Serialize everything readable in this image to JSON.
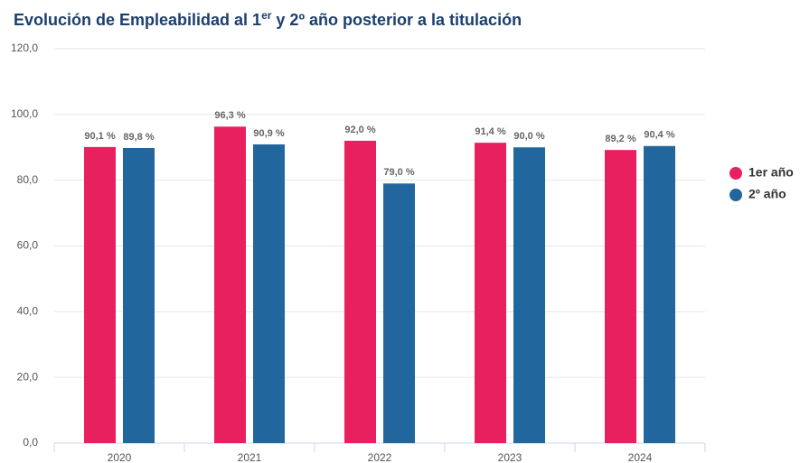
{
  "chart_data": {
    "type": "bar",
    "title": [
      "Evolución de Empleabilidad al 1",
      "er",
      " y 2º año posterior a la titulación"
    ],
    "categories": [
      "2020",
      "2021",
      "2022",
      "2023",
      "2024"
    ],
    "series": [
      {
        "name": "1er año",
        "color": "#e8205f",
        "values": [
          90.1,
          96.3,
          92.0,
          91.4,
          89.2
        ],
        "value_labels": [
          "90,1 %",
          "96,3 %",
          "92,0 %",
          "91,4 %",
          "89,2 %"
        ]
      },
      {
        "name": "2º año",
        "color": "#22669e",
        "values": [
          89.8,
          90.9,
          79.0,
          90.0,
          90.4
        ],
        "value_labels": [
          "89,8 %",
          "90,9 %",
          "79,0 %",
          "90,0 %",
          "90,4 %"
        ]
      }
    ],
    "ylim": [
      0,
      120
    ],
    "yticks": [
      {
        "value": 0,
        "label": "0,0"
      },
      {
        "value": 20,
        "label": "20,0"
      },
      {
        "value": 40,
        "label": "40,0"
      },
      {
        "value": 60,
        "label": "60,0"
      },
      {
        "value": 80,
        "label": "80,0"
      },
      {
        "value": 100,
        "label": "100,0"
      },
      {
        "value": 120,
        "label": "120,0"
      }
    ],
    "grid": true,
    "legend": "right"
  }
}
